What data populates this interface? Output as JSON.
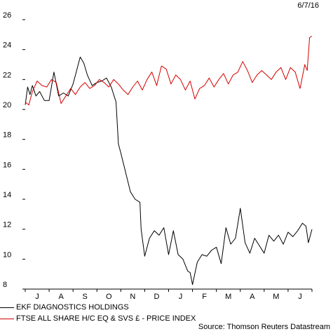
{
  "date_stamp": "6/7/16",
  "source": "Source: Thomson Reuters Datastream",
  "chart_data": {
    "type": "line",
    "ylim": [
      8,
      26
    ],
    "yticks": [
      8,
      10,
      12,
      14,
      16,
      18,
      20,
      22,
      24,
      26
    ],
    "xlim": [
      0,
      12
    ],
    "month_labels": [
      "J",
      "A",
      "S",
      "O",
      "N",
      "D",
      "J",
      "F",
      "M",
      "A",
      "M",
      "J"
    ],
    "grid": false,
    "legend_placement": "bottom",
    "series": [
      {
        "name": "EKF DIAGNOSTICS HOLDINGS",
        "color": "#000000",
        "x": [
          0,
          0.1,
          0.2,
          0.3,
          0.45,
          0.6,
          0.8,
          1.0,
          1.2,
          1.4,
          1.6,
          1.8,
          2.0,
          2.15,
          2.3,
          2.45,
          2.6,
          2.8,
          3.0,
          3.2,
          3.4,
          3.6,
          3.8,
          3.9,
          4.0,
          4.2,
          4.4,
          4.6,
          4.8,
          4.85,
          5.0,
          5.2,
          5.4,
          5.6,
          5.8,
          6.0,
          6.2,
          6.4,
          6.6,
          6.8,
          6.9,
          7.0,
          7.2,
          7.4,
          7.6,
          7.8,
          8.0,
          8.2,
          8.4,
          8.6,
          8.8,
          9.0,
          9.2,
          9.4,
          9.6,
          9.8,
          10.0,
          10.2,
          10.4,
          10.6,
          10.8,
          11.0,
          11.2,
          11.4,
          11.6,
          11.75,
          11.85,
          12.0
        ],
        "values": [
          20.3,
          21.5,
          21.0,
          21.6,
          20.9,
          21.2,
          20.6,
          20.6,
          22.5,
          20.9,
          21.1,
          20.9,
          21.7,
          22.6,
          23.5,
          23.1,
          22.3,
          21.6,
          21.8,
          21.9,
          22.1,
          21.5,
          20.5,
          17.7,
          17.1,
          15.8,
          14.5,
          14.0,
          13.8,
          12.0,
          10.2,
          11.4,
          11.9,
          11.6,
          12.1,
          10.3,
          11.9,
          10.3,
          10.0,
          9.2,
          9.1,
          8.3,
          9.8,
          10.3,
          10.2,
          10.6,
          10.8,
          9.7,
          12.1,
          11.0,
          11.4,
          13.4,
          11.1,
          10.4,
          11.4,
          10.9,
          10.4,
          11.6,
          11.2,
          11.6,
          11.0,
          11.8,
          11.5,
          11.9,
          12.4,
          12.2,
          11.1,
          12.0
        ]
      },
      {
        "name": "FTSE ALL SHARE H/C EQ & SVS £ - PRICE INDEX",
        "color": "#d40000",
        "x": [
          0,
          0.15,
          0.3,
          0.5,
          0.7,
          0.9,
          1.1,
          1.3,
          1.5,
          1.7,
          1.9,
          2.1,
          2.3,
          2.5,
          2.7,
          2.9,
          3.1,
          3.3,
          3.5,
          3.7,
          3.9,
          4.1,
          4.3,
          4.5,
          4.7,
          4.9,
          5.1,
          5.3,
          5.5,
          5.7,
          5.9,
          6.1,
          6.3,
          6.5,
          6.7,
          6.9,
          7.1,
          7.3,
          7.5,
          7.7,
          7.9,
          8.1,
          8.3,
          8.5,
          8.7,
          8.9,
          9.1,
          9.3,
          9.5,
          9.7,
          9.9,
          10.1,
          10.3,
          10.5,
          10.7,
          10.9,
          11.1,
          11.3,
          11.5,
          11.7,
          11.8,
          11.9,
          12.0
        ],
        "values": [
          20.5,
          20.3,
          21.2,
          21.9,
          21.6,
          21.5,
          22.0,
          21.8,
          20.4,
          20.9,
          21.4,
          21.0,
          21.5,
          21.8,
          21.4,
          21.6,
          22.0,
          21.8,
          21.5,
          22.0,
          21.7,
          21.3,
          21.0,
          21.5,
          21.9,
          21.3,
          22.0,
          22.5,
          21.6,
          22.9,
          22.7,
          21.7,
          22.3,
          22.0,
          21.3,
          21.9,
          20.7,
          21.4,
          21.6,
          22.1,
          21.5,
          22.0,
          22.4,
          21.7,
          22.3,
          22.5,
          23.2,
          22.6,
          21.8,
          22.3,
          22.6,
          22.3,
          22.0,
          22.5,
          22.8,
          22.0,
          22.8,
          22.5,
          21.4,
          23.0,
          22.6,
          24.8,
          24.9
        ]
      }
    ]
  }
}
